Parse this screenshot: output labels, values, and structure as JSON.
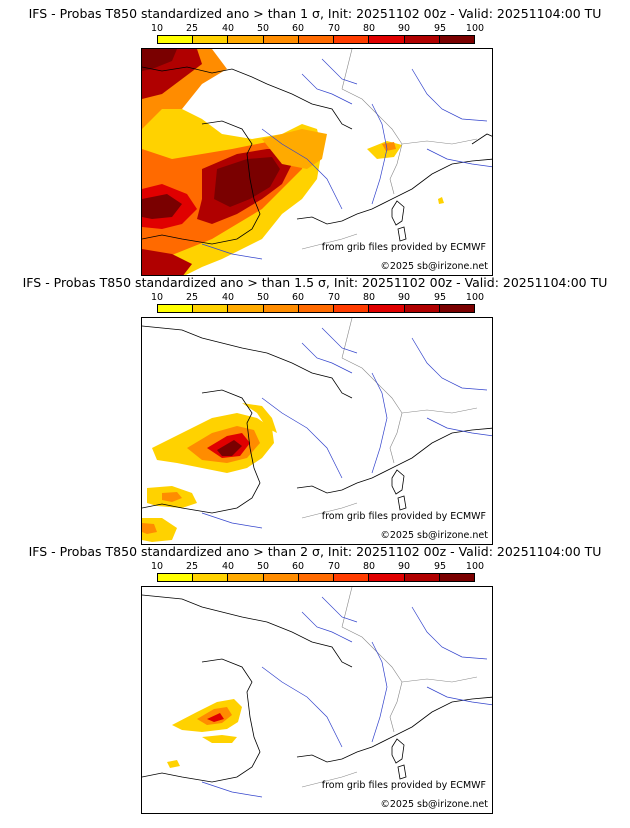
{
  "colorbar": {
    "ticks": [
      "10",
      "25",
      "40",
      "50",
      "60",
      "70",
      "80",
      "90",
      "95",
      "100"
    ],
    "colors": [
      "#ffff00",
      "#ffd200",
      "#ffaa00",
      "#ff8c00",
      "#ff6a00",
      "#ff3c00",
      "#e00000",
      "#b00000",
      "#7a0000"
    ]
  },
  "panels": [
    {
      "title": "IFS - Probas T850  standardized ano > than 1 σ, Init: 20251102 00z - Valid: 20251104:00 TU",
      "source_label": "from grib files provided by ECMWF",
      "copyright_label": "©2025 sb@irizone.net",
      "probability_levels": [
        10,
        25,
        40,
        50,
        60,
        70,
        80,
        90,
        95,
        100
      ]
    },
    {
      "title": "IFS - Probas T850  standardized ano > than 1.5 σ, Init: 20251102 00z - Valid: 20251104:00 TU",
      "source_label": "from grib files provided by ECMWF",
      "copyright_label": "©2025 sb@irizone.net",
      "probability_levels": [
        10,
        25,
        40,
        50,
        60,
        70,
        80,
        90,
        95,
        100
      ]
    },
    {
      "title": "IFS - Probas T850  standardized ano > than 2 σ, Init: 20251102 00z - Valid: 20251104:00 TU",
      "source_label": "from grib files provided by ECMWF",
      "copyright_label": "©2025 sb@irizone.net",
      "probability_levels": [
        10,
        25,
        40,
        50,
        60,
        70,
        80,
        90,
        95,
        100
      ]
    }
  ]
}
